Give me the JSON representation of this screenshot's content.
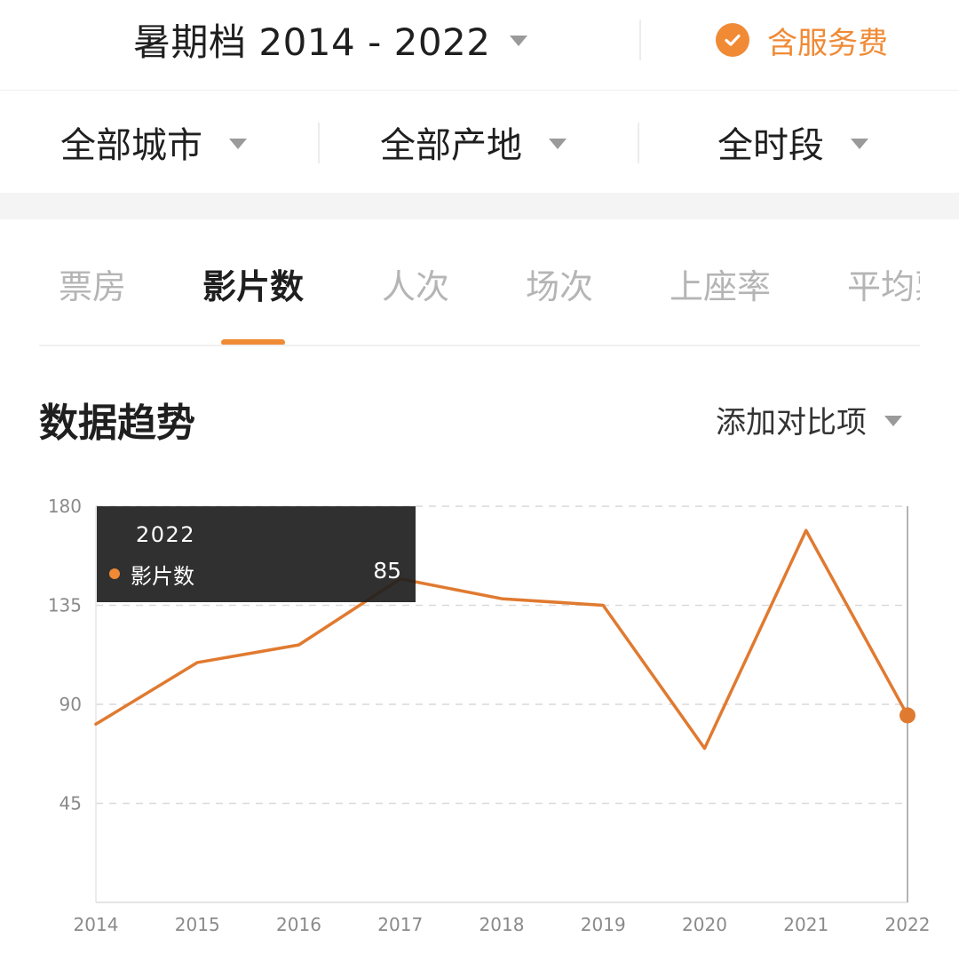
{
  "header": {
    "period_label": "暑期档 2014 - 2022",
    "service_fee_label": "含服务费"
  },
  "filters": {
    "city": "全部城市",
    "origin": "全部产地",
    "timeslot": "全时段"
  },
  "tabs": [
    {
      "label": "票房",
      "active": false
    },
    {
      "label": "影片数",
      "active": true
    },
    {
      "label": "人次",
      "active": false
    },
    {
      "label": "场次",
      "active": false
    },
    {
      "label": "上座率",
      "active": false
    },
    {
      "label": "平均票价",
      "active": false
    }
  ],
  "section": {
    "title": "数据趋势",
    "compare_label": "添加对比项"
  },
  "colors": {
    "accent": "#f08a35",
    "line": "#e07a30"
  },
  "chart_data": {
    "type": "line",
    "categories": [
      "2014",
      "2015",
      "2016",
      "2017",
      "2018",
      "2019",
      "2020",
      "2021",
      "2022"
    ],
    "series": [
      {
        "name": "影片数",
        "values": [
          81,
          109,
          117,
          147,
          138,
          135,
          70,
          169,
          85
        ]
      }
    ],
    "ylim": [
      0,
      180
    ],
    "yticks": [
      45,
      90,
      135,
      180
    ],
    "grid": true,
    "tooltip": {
      "year": "2022",
      "series": "影片数",
      "value": "85"
    }
  }
}
